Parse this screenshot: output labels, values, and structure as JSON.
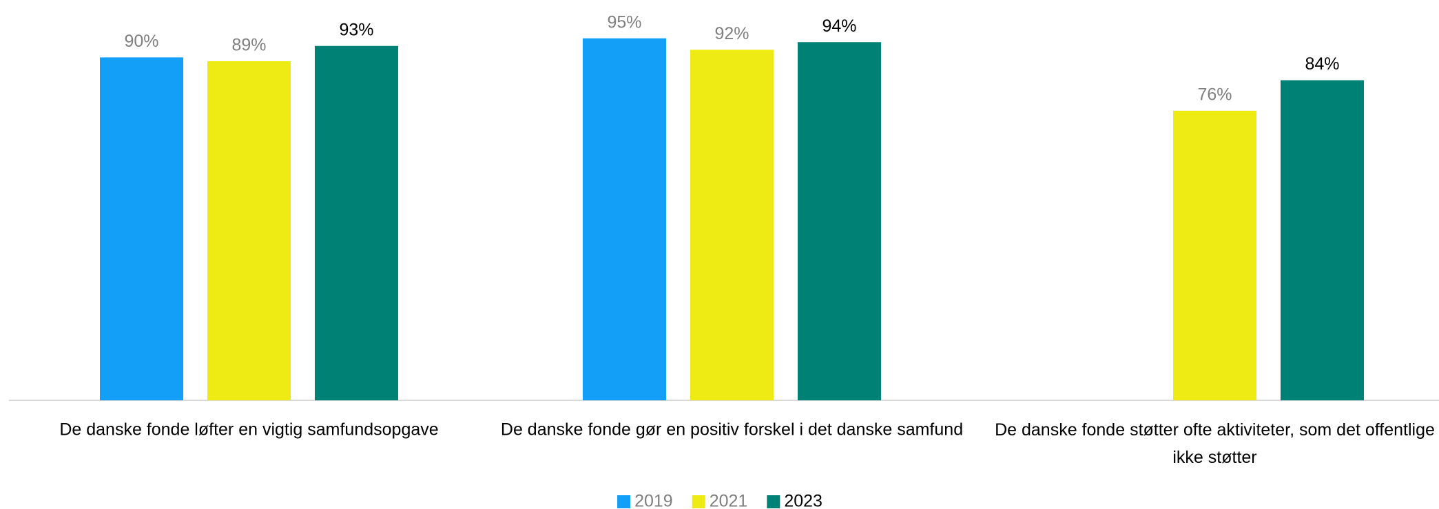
{
  "chart_data": {
    "type": "bar",
    "categories": [
      "De danske fonde løfter en vigtig samfundsopgave",
      "De danske fonde gør en positiv forskel i det danske samfund",
      "De danske fonde støtter ofte aktiviteter, som det offentlige ikke støtter"
    ],
    "series": [
      {
        "name": "2019",
        "color": "#139ff7",
        "label_color": "#7f7f7f",
        "values": [
          90,
          95,
          null
        ],
        "value_labels": [
          "90%",
          "95%",
          null
        ]
      },
      {
        "name": "2021",
        "color": "#eeea13",
        "label_color": "#7f7f7f",
        "values": [
          89,
          92,
          76
        ],
        "value_labels": [
          "89%",
          "92%",
          "76%"
        ]
      },
      {
        "name": "2023",
        "color": "#008176",
        "label_color": "#000000",
        "values": [
          93,
          94,
          84
        ],
        "value_labels": [
          "93%",
          "94%",
          "84%"
        ]
      }
    ],
    "ylim": [
      0,
      100
    ],
    "legend": "bottom"
  }
}
